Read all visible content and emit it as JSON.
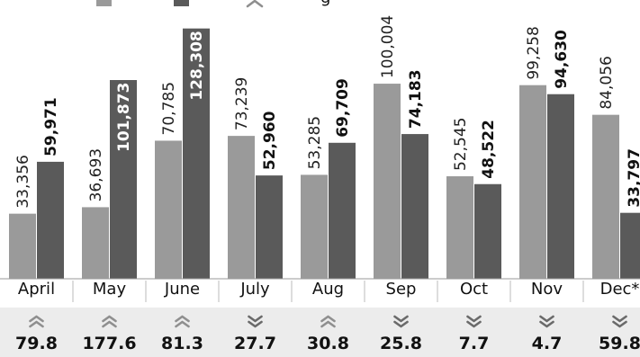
{
  "chart_data": {
    "type": "bar",
    "categories": [
      "April",
      "May",
      "June",
      "July",
      "Aug",
      "Sep",
      "Oct",
      "Nov",
      "Dec*"
    ],
    "series": [
      {
        "color": "#9a9a9a",
        "values": [
          33356,
          36693,
          70785,
          73239,
          53285,
          100004,
          52545,
          99258,
          84056
        ],
        "labels": [
          "33,356",
          "36,693",
          "70,785",
          "73,239",
          "53,285",
          "100,004",
          "52,545",
          "99,258",
          "84,056"
        ]
      },
      {
        "color": "#5a5a5a",
        "values": [
          59971,
          101873,
          128308,
          52960,
          69709,
          74183,
          48522,
          94630,
          33797
        ],
        "labels": [
          "59,971",
          "101,873",
          "128,308",
          "52,960",
          "69,709",
          "74,183",
          "48,522",
          "94,630",
          "33,797"
        ]
      }
    ],
    "changes": [
      {
        "value": "79.8",
        "direction": "up"
      },
      {
        "value": "177.6",
        "direction": "up"
      },
      {
        "value": "81.3",
        "direction": "up"
      },
      {
        "value": "27.7",
        "direction": "down"
      },
      {
        "value": "30.8",
        "direction": "up"
      },
      {
        "value": "25.8",
        "direction": "down"
      },
      {
        "value": "7.7",
        "direction": "down"
      },
      {
        "value": "4.7",
        "direction": "down"
      },
      {
        "value": "59.8",
        "direction": "down"
      }
    ],
    "legend": {
      "position": "top",
      "entries": [
        {
          "color": "#9a9a9a"
        },
        {
          "color": "#5a5a5a"
        },
        {
          "icon": "double-chevron-up-icon",
          "text": "g"
        }
      ]
    },
    "ylim": [
      0,
      130000
    ],
    "grid": false,
    "colors": {
      "series_a": "#9a9a9a",
      "series_b": "#5a5a5a",
      "change_band": "#ececec",
      "divider": "#bbbbbb",
      "arrow_up": "#8f8f8f",
      "arrow_down": "#6a6a6a"
    }
  }
}
